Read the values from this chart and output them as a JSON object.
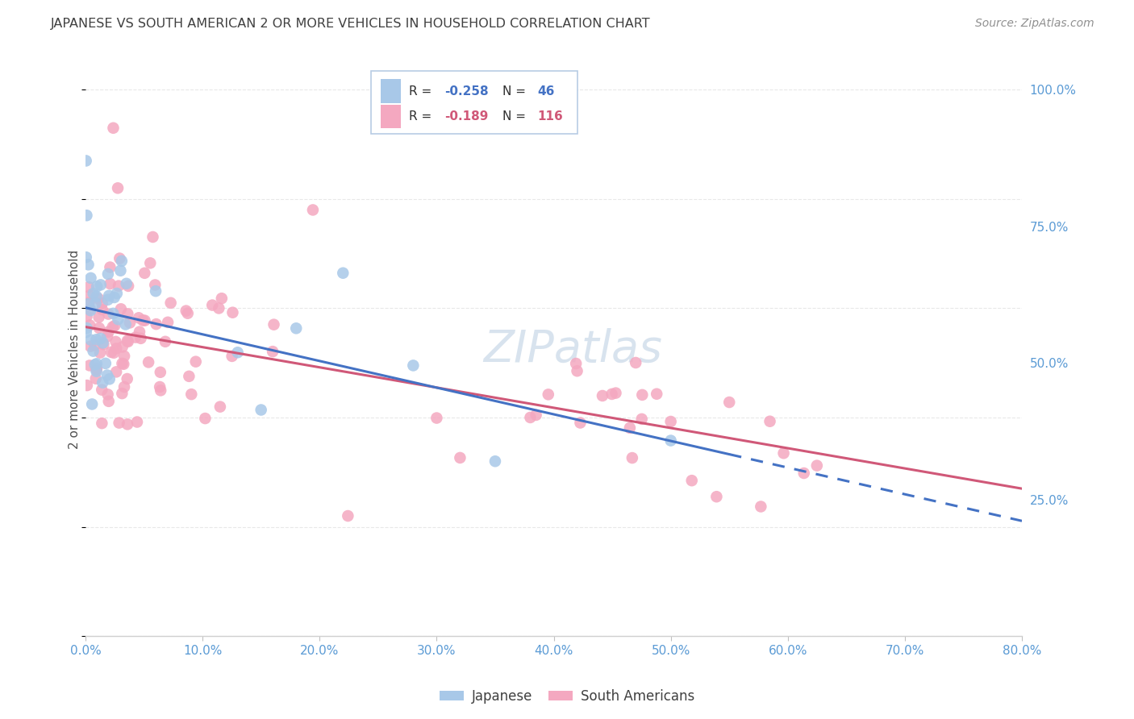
{
  "title": "JAPANESE VS SOUTH AMERICAN 2 OR MORE VEHICLES IN HOUSEHOLD CORRELATION CHART",
  "source": "Source: ZipAtlas.com",
  "ylabel": "2 or more Vehicles in Household",
  "legend_label_blue": "Japanese",
  "legend_label_pink": "South Americans",
  "blue_scatter_color": "#a8c8e8",
  "pink_scatter_color": "#f4a8c0",
  "blue_line_color": "#4472c4",
  "pink_line_color": "#d05878",
  "title_color": "#404040",
  "source_color": "#909090",
  "axis_label_color": "#5b9bd5",
  "grid_color": "#e8e8e8",
  "watermark_color": "#c8d8e8",
  "legend_border_color": "#b8cce4",
  "xlim": [
    0.0,
    0.8
  ],
  "ylim": [
    0.0,
    1.05
  ],
  "xticks": [
    0.0,
    0.1,
    0.2,
    0.3,
    0.4,
    0.5,
    0.6,
    0.7,
    0.8
  ],
  "xticklabels": [
    "0.0%",
    "10.0%",
    "20.0%",
    "30.0%",
    "40.0%",
    "50.0%",
    "60.0%",
    "70.0%",
    "80.0%"
  ],
  "yticks": [
    0.25,
    0.5,
    0.75,
    1.0
  ],
  "yticklabels": [
    "25.0%",
    "50.0%",
    "75.0%",
    "100.0%"
  ],
  "blue_r": -0.258,
  "blue_n": 46,
  "pink_r": -0.189,
  "pink_n": 116,
  "blue_r_str": "-0.258",
  "blue_n_str": "46",
  "pink_r_str": "-0.189",
  "pink_n_str": "116"
}
